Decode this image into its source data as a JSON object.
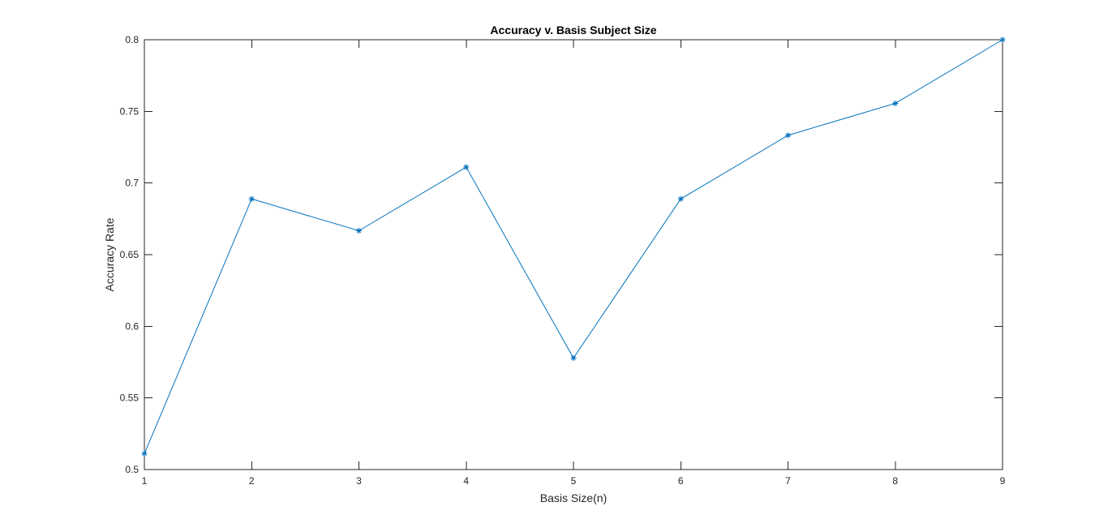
{
  "chart_data": {
    "type": "line",
    "title": "Accuracy v. Basis Subject Size",
    "xlabel": "Basis Size(n)",
    "ylabel": "Accuracy Rate",
    "xlim": [
      1,
      9
    ],
    "ylim": [
      0.5,
      0.8
    ],
    "x_ticks": [
      "1",
      "2",
      "3",
      "4",
      "5",
      "6",
      "7",
      "8",
      "9"
    ],
    "y_ticks": [
      "0.5",
      "0.55",
      "0.6",
      "0.65",
      "0.7",
      "0.75",
      "0.8"
    ],
    "x_tick_values": [
      1,
      2,
      3,
      4,
      5,
      6,
      7,
      8,
      9
    ],
    "y_tick_values": [
      0.5,
      0.55,
      0.6,
      0.65,
      0.7,
      0.75,
      0.8
    ],
    "grid": false,
    "marker": "asterisk",
    "series": [
      {
        "x": [
          1,
          2,
          3,
          4,
          5,
          6,
          7,
          8,
          9
        ],
        "y": [
          0.5111,
          0.6889,
          0.6667,
          0.7111,
          0.5778,
          0.6889,
          0.7333,
          0.7556,
          0.8
        ],
        "color": "#0072BD"
      }
    ]
  }
}
